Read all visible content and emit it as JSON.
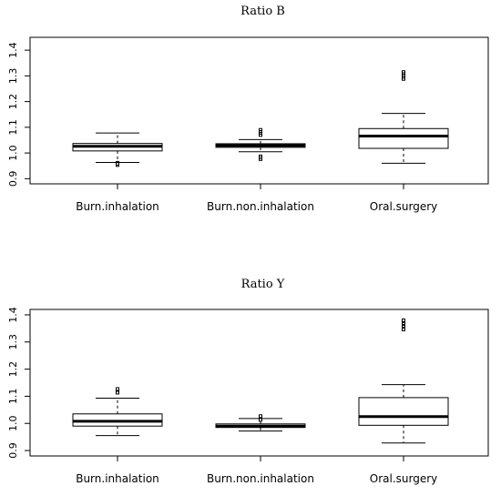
{
  "chart_data": [
    {
      "type": "box",
      "title": "Ratio B",
      "xlabel": "",
      "ylabel": "",
      "categories": [
        "Burn.inhalation",
        "Burn.non.inhalation",
        "Oral.surgery"
      ],
      "ylim": [
        0.88,
        1.45
      ],
      "yticks": [
        0.9,
        1.0,
        1.1,
        1.2,
        1.3,
        1.4
      ],
      "ytick_labels": [
        "0.9",
        "1.0",
        "1.1",
        "1.2",
        "1.3",
        "1.4"
      ],
      "grid": false,
      "boxes": [
        {
          "category": "Burn.inhalation",
          "whisker_low": 0.963,
          "q1": 1.008,
          "median": 1.026,
          "q3": 1.037,
          "whisker_high": 1.078,
          "outliers": [
            0.955,
            0.96
          ]
        },
        {
          "category": "Burn.non.inhalation",
          "whisker_low": 1.005,
          "q1": 1.022,
          "median": 1.029,
          "q3": 1.036,
          "whisker_high": 1.052,
          "outliers": [
            0.978,
            0.985,
            1.072,
            1.08,
            1.088
          ]
        },
        {
          "category": "Oral.surgery",
          "whisker_low": 0.96,
          "q1": 1.018,
          "median": 1.066,
          "q3": 1.095,
          "whisker_high": 1.154,
          "outliers": [
            1.29,
            1.298,
            1.305,
            1.313
          ]
        }
      ]
    },
    {
      "type": "box",
      "title": "Ratio Y",
      "xlabel": "",
      "ylabel": "",
      "categories": [
        "Burn.inhalation",
        "Burn.non.inhalation",
        "Oral.surgery"
      ],
      "ylim": [
        0.88,
        1.42
      ],
      "yticks": [
        0.9,
        1.0,
        1.1,
        1.2,
        1.3,
        1.4
      ],
      "ytick_labels": [
        "0.9",
        "1.0",
        "1.1",
        "1.2",
        "1.3",
        "1.4"
      ],
      "grid": false,
      "boxes": [
        {
          "category": "Burn.inhalation",
          "whisker_low": 0.955,
          "q1": 0.99,
          "median": 1.008,
          "q3": 1.035,
          "whisker_high": 1.093,
          "outliers": [
            1.115,
            1.125
          ]
        },
        {
          "category": "Burn.non.inhalation",
          "whisker_low": 0.972,
          "q1": 0.985,
          "median": 0.99,
          "q3": 0.998,
          "whisker_high": 1.018,
          "outliers": [
            1.015,
            1.025
          ]
        },
        {
          "category": "Oral.surgery",
          "whisker_low": 0.928,
          "q1": 0.993,
          "median": 1.025,
          "q3": 1.095,
          "whisker_high": 1.143,
          "outliers": [
            1.348,
            1.358,
            1.368,
            1.378
          ]
        }
      ]
    }
  ]
}
